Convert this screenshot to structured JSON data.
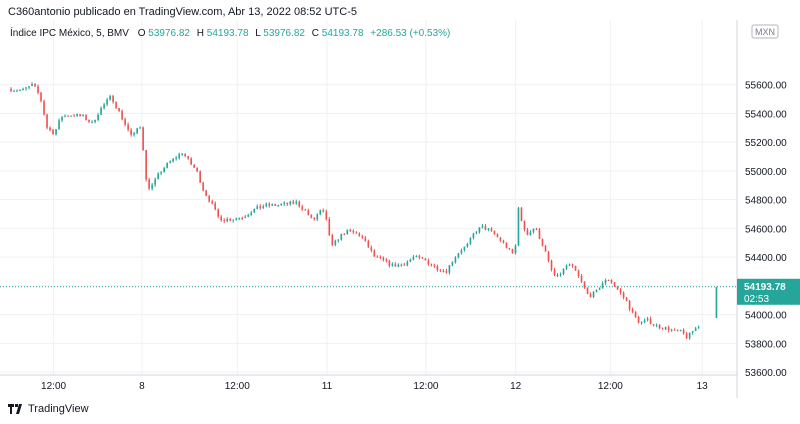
{
  "header": {
    "attribution": "C360antonio publicado en TradingView.com, Abr 13, 2022 08:52 UTC-5"
  },
  "legend": {
    "symbol": "Índice IPC México, 5, BMV",
    "open_label": "O",
    "open": "53976.82",
    "high_label": "H",
    "high": "54193.78",
    "low_label": "L",
    "low": "53976.82",
    "close_label": "C",
    "close": "54193.78",
    "change": "+286.53 (+0.53%)"
  },
  "currency_badge": "MXN",
  "price_label": {
    "value": "54193.78",
    "countdown": "02:53"
  },
  "footer": {
    "brand": "TradingView"
  },
  "colors": {
    "up": "#26a69a",
    "down": "#ef5350",
    "grid": "#eef0f3",
    "last_line": "#26a69a"
  },
  "chart_data": {
    "type": "candlestick",
    "ylim": [
      53580,
      56050
    ],
    "y_ticks": [
      53600,
      53800,
      54000,
      54200,
      54400,
      54600,
      54800,
      55000,
      55200,
      55400,
      55600
    ],
    "y_tick_labels": [
      "53600.00",
      "53800.00",
      "54000.00",
      "54200.00",
      "54400.00",
      "54600.00",
      "54800.00",
      "55000.00",
      "55200.00",
      "55400.00",
      "55600.00"
    ],
    "x_ticks": [
      {
        "label": "12:00",
        "t": 0.064
      },
      {
        "label": "8",
        "t": 0.188
      },
      {
        "label": "12:00",
        "t": 0.322
      },
      {
        "label": "11",
        "t": 0.448
      },
      {
        "label": "12:00",
        "t": 0.587
      },
      {
        "label": "12",
        "t": 0.713
      },
      {
        "label": "12:00",
        "t": 0.846
      },
      {
        "label": "13",
        "t": 0.975
      }
    ],
    "last_price": 54193.78,
    "ohlc_summary": {
      "open": 53976.82,
      "high": 54193.78,
      "low": 53976.82,
      "close": 54193.78
    },
    "path_points": [
      [
        0.0,
        55570
      ],
      [
        0.02,
        55560
      ],
      [
        0.035,
        55600
      ],
      [
        0.045,
        55520
      ],
      [
        0.055,
        55300
      ],
      [
        0.065,
        55260
      ],
      [
        0.075,
        55380
      ],
      [
        0.09,
        55390
      ],
      [
        0.105,
        55380
      ],
      [
        0.118,
        55330
      ],
      [
        0.13,
        55430
      ],
      [
        0.145,
        55520
      ],
      [
        0.155,
        55420
      ],
      [
        0.165,
        55320
      ],
      [
        0.175,
        55230
      ],
      [
        0.185,
        55330
      ],
      [
        0.19,
        55150
      ],
      [
        0.195,
        54880
      ],
      [
        0.203,
        54900
      ],
      [
        0.212,
        54980
      ],
      [
        0.222,
        55040
      ],
      [
        0.232,
        55080
      ],
      [
        0.245,
        55130
      ],
      [
        0.255,
        55060
      ],
      [
        0.265,
        55000
      ],
      [
        0.275,
        54860
      ],
      [
        0.285,
        54780
      ],
      [
        0.295,
        54680
      ],
      [
        0.305,
        54660
      ],
      [
        0.318,
        54670
      ],
      [
        0.33,
        54680
      ],
      [
        0.345,
        54730
      ],
      [
        0.36,
        54760
      ],
      [
        0.375,
        54760
      ],
      [
        0.39,
        54770
      ],
      [
        0.405,
        54780
      ],
      [
        0.418,
        54720
      ],
      [
        0.428,
        54650
      ],
      [
        0.438,
        54720
      ],
      [
        0.445,
        54700
      ],
      [
        0.455,
        54470
      ],
      [
        0.465,
        54540
      ],
      [
        0.475,
        54580
      ],
      [
        0.485,
        54570
      ],
      [
        0.495,
        54550
      ],
      [
        0.505,
        54480
      ],
      [
        0.515,
        54400
      ],
      [
        0.525,
        54380
      ],
      [
        0.54,
        54340
      ],
      [
        0.555,
        54350
      ],
      [
        0.57,
        54400
      ],
      [
        0.585,
        54380
      ],
      [
        0.6,
        54330
      ],
      [
        0.615,
        54300
      ],
      [
        0.625,
        54380
      ],
      [
        0.635,
        54450
      ],
      [
        0.645,
        54480
      ],
      [
        0.655,
        54570
      ],
      [
        0.665,
        54610
      ],
      [
        0.675,
        54590
      ],
      [
        0.685,
        54550
      ],
      [
        0.695,
        54500
      ],
      [
        0.705,
        54440
      ],
      [
        0.712,
        54410
      ],
      [
        0.716,
        54780
      ],
      [
        0.722,
        54620
      ],
      [
        0.73,
        54560
      ],
      [
        0.74,
        54610
      ],
      [
        0.748,
        54520
      ],
      [
        0.755,
        54430
      ],
      [
        0.762,
        54320
      ],
      [
        0.77,
        54250
      ],
      [
        0.778,
        54300
      ],
      [
        0.786,
        54350
      ],
      [
        0.795,
        54320
      ],
      [
        0.805,
        54230
      ],
      [
        0.815,
        54130
      ],
      [
        0.825,
        54150
      ],
      [
        0.835,
        54220
      ],
      [
        0.845,
        54250
      ],
      [
        0.852,
        54200
      ],
      [
        0.86,
        54150
      ],
      [
        0.868,
        54100
      ],
      [
        0.878,
        54000
      ],
      [
        0.888,
        53940
      ],
      [
        0.898,
        53960
      ],
      [
        0.908,
        53930
      ],
      [
        0.918,
        53910
      ],
      [
        0.928,
        53900
      ],
      [
        0.938,
        53880
      ],
      [
        0.946,
        53880
      ],
      [
        0.954,
        53840
      ],
      [
        0.962,
        53890
      ],
      [
        0.97,
        53920
      ]
    ]
  }
}
